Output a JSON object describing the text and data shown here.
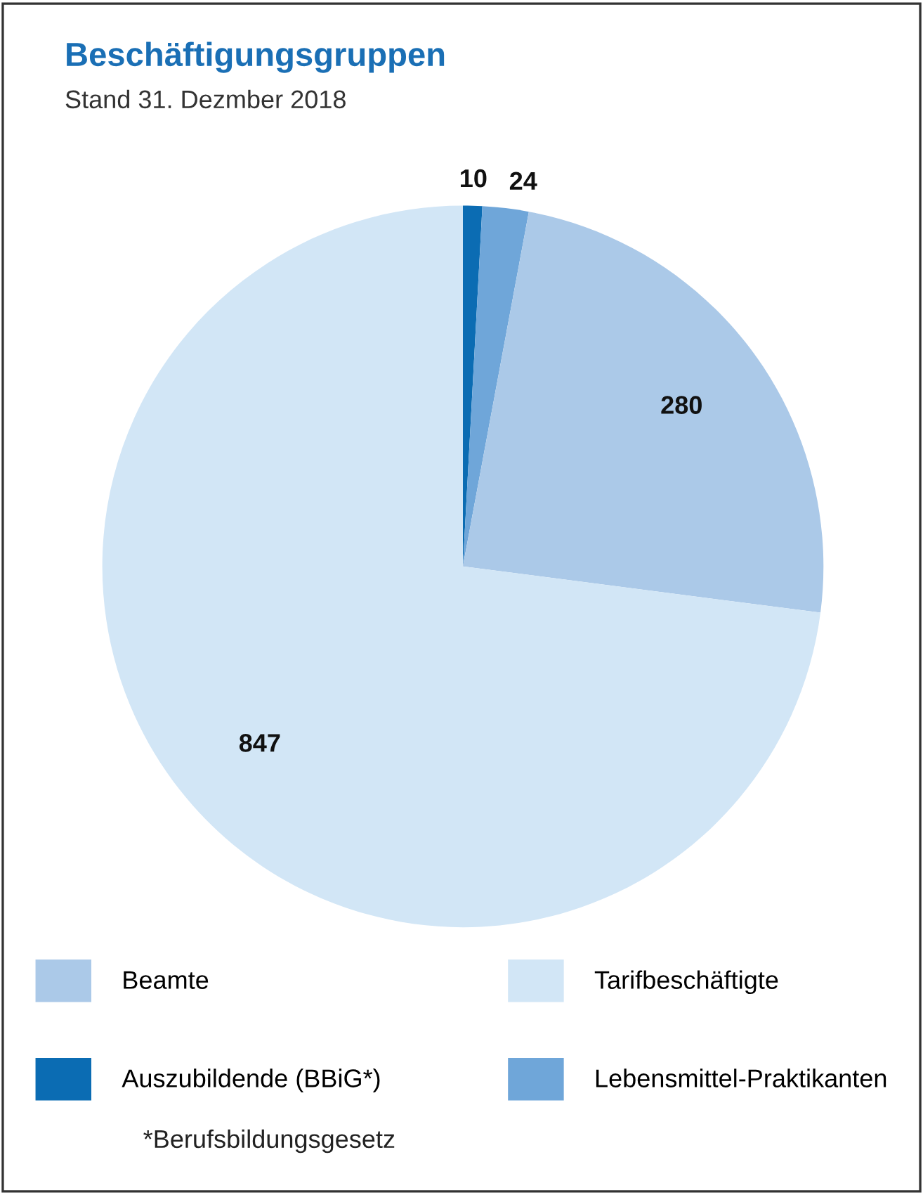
{
  "chart_data": {
    "type": "pie",
    "title": "Beschäftigungsgruppen",
    "subtitle": "Stand 31. Dezmber 2018",
    "categories": [
      "Auszubildende (BBiG*)",
      "Lebensmittel-Praktikanten",
      "Beamte",
      "Tarifbeschäftigte"
    ],
    "values": [
      10,
      24,
      280,
      847
    ],
    "colors": [
      "#0b6cb3",
      "#6fa6d9",
      "#abc9e8",
      "#d2e6f6"
    ],
    "data_labels": true,
    "legend": "bottom",
    "annotations": [
      "*Berufsbildungsgesetz"
    ]
  }
}
